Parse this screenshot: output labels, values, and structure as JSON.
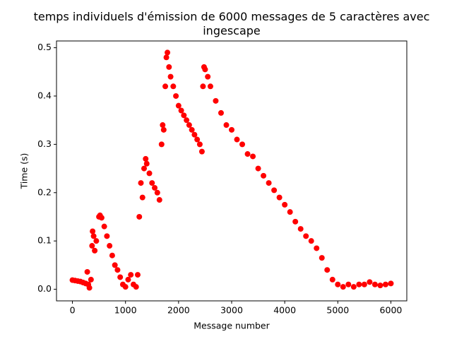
{
  "chart_data": {
    "type": "scatter",
    "title": "temps individuels d'émission de 6000 messages de 5 caractères avec ingescape",
    "xlabel": "Message number",
    "ylabel": "Time (s)",
    "color": "#ff0000",
    "x": [
      0,
      50,
      100,
      150,
      200,
      250,
      280,
      300,
      320,
      350,
      370,
      380,
      400,
      420,
      450,
      500,
      520,
      550,
      600,
      650,
      700,
      750,
      800,
      850,
      900,
      950,
      1000,
      1050,
      1100,
      1150,
      1200,
      1230,
      1260,
      1290,
      1320,
      1350,
      1380,
      1400,
      1450,
      1500,
      1550,
      1600,
      1640,
      1680,
      1700,
      1720,
      1750,
      1770,
      1790,
      1820,
      1850,
      1900,
      1950,
      2000,
      2050,
      2100,
      2150,
      2200,
      2250,
      2300,
      2350,
      2400,
      2440,
      2460,
      2480,
      2500,
      2550,
      2600,
      2700,
      2800,
      2900,
      3000,
      3100,
      3200,
      3300,
      3400,
      3500,
      3600,
      3700,
      3800,
      3900,
      4000,
      4100,
      4200,
      4300,
      4400,
      4500,
      4600,
      4700,
      4800,
      4900,
      5000,
      5100,
      5200,
      5300,
      5400,
      5500,
      5600,
      5700,
      5800,
      5900,
      6000
    ],
    "values": [
      0.019,
      0.018,
      0.017,
      0.016,
      0.014,
      0.012,
      0.036,
      0.01,
      0.003,
      0.02,
      0.09,
      0.12,
      0.11,
      0.08,
      0.1,
      0.15,
      0.153,
      0.148,
      0.13,
      0.11,
      0.09,
      0.07,
      0.05,
      0.04,
      0.025,
      0.01,
      0.005,
      0.02,
      0.03,
      0.01,
      0.005,
      0.03,
      0.15,
      0.22,
      0.19,
      0.25,
      0.27,
      0.26,
      0.24,
      0.22,
      0.21,
      0.2,
      0.185,
      0.3,
      0.34,
      0.33,
      0.42,
      0.48,
      0.49,
      0.46,
      0.44,
      0.42,
      0.4,
      0.38,
      0.37,
      0.36,
      0.35,
      0.34,
      0.33,
      0.32,
      0.31,
      0.3,
      0.285,
      0.42,
      0.46,
      0.455,
      0.44,
      0.42,
      0.39,
      0.365,
      0.34,
      0.33,
      0.31,
      0.3,
      0.28,
      0.275,
      0.25,
      0.235,
      0.22,
      0.205,
      0.19,
      0.175,
      0.16,
      0.14,
      0.125,
      0.11,
      0.1,
      0.085,
      0.065,
      0.04,
      0.02,
      0.01,
      0.005,
      0.01,
      0.005,
      0.01,
      0.01,
      0.015,
      0.01,
      0.008,
      0.01,
      0.012
    ],
    "xlim": [
      -300,
      6300
    ],
    "ylim": [
      -0.024,
      0.514
    ],
    "xticks": [
      0,
      1000,
      2000,
      3000,
      4000,
      5000,
      6000
    ],
    "yticks": [
      {
        "value": 0,
        "label": "0.0"
      },
      0.1,
      0.2,
      0.3,
      0.4,
      0.5
    ]
  }
}
